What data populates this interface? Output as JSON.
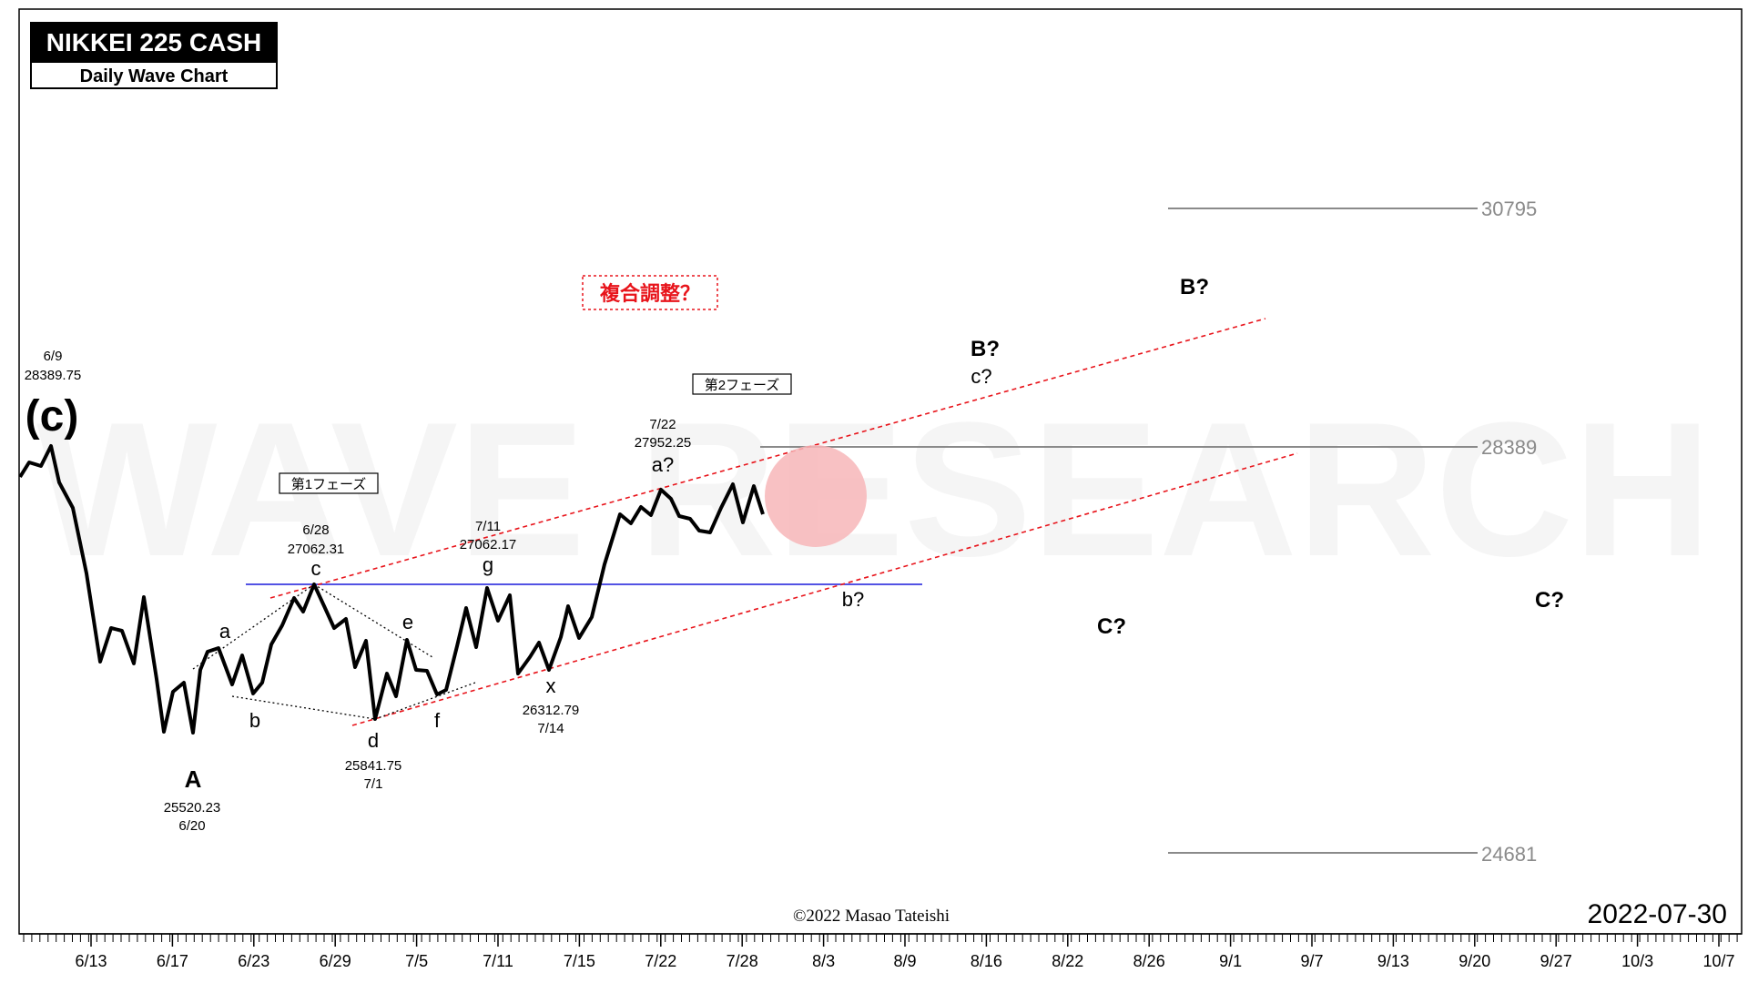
{
  "title_box": {
    "title": "NIKKEI 225 CASH",
    "subtitle": "Daily Wave Chart"
  },
  "watermark": "WAVE RESEARCH",
  "copyright": "©2022 Masao Tateishi",
  "chart_date": "2022-07-30",
  "phase_labels": {
    "phase1": "第1フェーズ",
    "phase2": "第2フェーズ"
  },
  "complex_correction": "複合調整？",
  "colors": {
    "price_line": "#000000",
    "channel": "#e8141b",
    "support_line": "#1a1adc",
    "level_line": "#8a8a8a",
    "marker": "#f7b6b8"
  },
  "chart_data": {
    "type": "line",
    "title": "NIKKEI 225 CASH",
    "subtitle": "Daily Wave Chart",
    "ylim": [
      23000,
      32000
    ],
    "x_tick_labels": [
      "6/13",
      "6/17",
      "6/23",
      "6/29",
      "7/5",
      "7/11",
      "7/15",
      "7/22",
      "7/28",
      "8/3",
      "8/9",
      "8/16",
      "8/22",
      "8/26",
      "9/1",
      "9/7",
      "9/13",
      "9/20",
      "9/27",
      "10/3",
      "10/7"
    ],
    "series": [
      {
        "values": [
          [
            "6/7",
            27950
          ],
          [
            "6/8",
            28220
          ],
          [
            "6/9",
            28389.75
          ],
          [
            "6/10",
            27700
          ],
          [
            "6/13",
            26600
          ],
          [
            "6/14",
            26450
          ],
          [
            "6/15",
            26350
          ],
          [
            "6/16",
            26430
          ],
          [
            "6/17",
            25960
          ],
          [
            "6/20",
            25520.23
          ],
          [
            "6/21",
            26200
          ],
          [
            "6/22",
            26120
          ],
          [
            "6/23",
            26170
          ],
          [
            "6/24",
            26490
          ],
          [
            "6/27",
            26880
          ],
          [
            "6/28",
            27062.31
          ],
          [
            "6/29",
            26800
          ],
          [
            "6/30",
            26400
          ],
          [
            "7/1",
            25841.75
          ],
          [
            "7/4",
            26150
          ],
          [
            "7/5",
            26420
          ],
          [
            "7/6",
            26100
          ],
          [
            "7/7",
            26490
          ],
          [
            "7/8",
            26520
          ],
          [
            "7/11",
            27062.17
          ],
          [
            "7/12",
            26340
          ],
          [
            "7/13",
            26480
          ],
          [
            "7/14",
            26312.79
          ],
          [
            "7/15",
            26780
          ],
          [
            "7/19",
            27180
          ],
          [
            "7/20",
            27680
          ],
          [
            "7/21",
            27800
          ],
          [
            "7/22",
            27952.25
          ],
          [
            "7/25",
            27700
          ],
          [
            "7/26",
            27650
          ],
          [
            "7/27",
            27710
          ],
          [
            "7/28",
            27815
          ],
          [
            "7/29",
            27801
          ]
        ]
      }
    ],
    "levels": [
      30795,
      28389,
      24681
    ],
    "pivots": [
      {
        "label": "(c)",
        "date": "6/9",
        "value": "28389.75"
      },
      {
        "label": "A",
        "date": "6/20",
        "value": "25520.23"
      },
      {
        "label": "a"
      },
      {
        "label": "b"
      },
      {
        "label": "c",
        "date": "6/28",
        "value": "27062.31"
      },
      {
        "label": "d",
        "date": "7/1",
        "value": "25841.75"
      },
      {
        "label": "e"
      },
      {
        "label": "f"
      },
      {
        "label": "g",
        "date": "7/11",
        "value": "27062.17"
      },
      {
        "label": "x",
        "date": "7/14",
        "value": "26312.79"
      },
      {
        "label": "a?",
        "date": "7/22",
        "value": "27952.25"
      }
    ],
    "forecast_labels": [
      "B?",
      "c?",
      "b?",
      "C?",
      "B?",
      "C?"
    ]
  }
}
